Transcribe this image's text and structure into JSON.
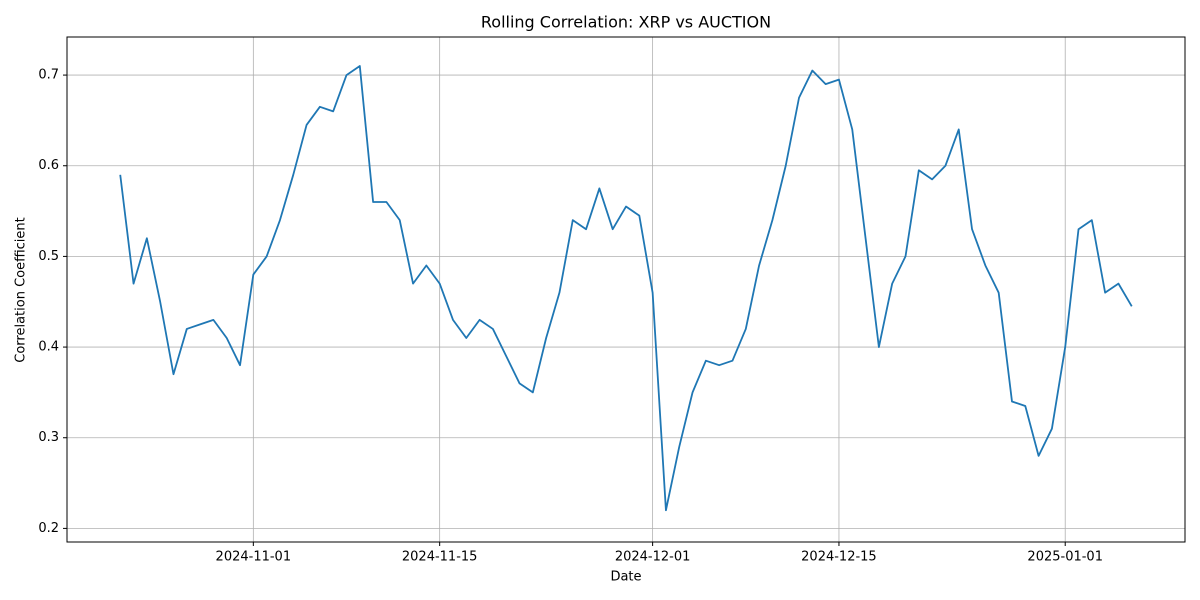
{
  "chart_data": {
    "type": "line",
    "title": "Rolling Correlation: XRP vs AUCTION",
    "x_label": "Date",
    "y_label": "Correlation Coefficient",
    "x": [
      "2024-10-22",
      "2024-10-23",
      "2024-10-24",
      "2024-10-25",
      "2024-10-26",
      "2024-10-27",
      "2024-10-28",
      "2024-10-29",
      "2024-10-30",
      "2024-10-31",
      "2024-11-01",
      "2024-11-02",
      "2024-11-03",
      "2024-11-04",
      "2024-11-05",
      "2024-11-06",
      "2024-11-07",
      "2024-11-08",
      "2024-11-09",
      "2024-11-10",
      "2024-11-11",
      "2024-11-12",
      "2024-11-13",
      "2024-11-14",
      "2024-11-15",
      "2024-11-16",
      "2024-11-17",
      "2024-11-18",
      "2024-11-19",
      "2024-11-20",
      "2024-11-21",
      "2024-11-22",
      "2024-11-23",
      "2024-11-24",
      "2024-11-25",
      "2024-11-26",
      "2024-11-27",
      "2024-11-28",
      "2024-11-29",
      "2024-11-30",
      "2024-12-01",
      "2024-12-02",
      "2024-12-03",
      "2024-12-04",
      "2024-12-05",
      "2024-12-06",
      "2024-12-07",
      "2024-12-08",
      "2024-12-09",
      "2024-12-10",
      "2024-12-11",
      "2024-12-12",
      "2024-12-13",
      "2024-12-14",
      "2024-12-15",
      "2024-12-16",
      "2024-12-17",
      "2024-12-18",
      "2024-12-19",
      "2024-12-20",
      "2024-12-21",
      "2024-12-22",
      "2024-12-23",
      "2024-12-24",
      "2024-12-25",
      "2024-12-26",
      "2024-12-27",
      "2024-12-28",
      "2024-12-29",
      "2024-12-30",
      "2024-12-31",
      "2025-01-01",
      "2025-01-02",
      "2025-01-03",
      "2025-01-04",
      "2025-01-05",
      "2025-01-06"
    ],
    "series": [
      {
        "name": "Rolling Correlation",
        "color": "#1f77b4",
        "values": [
          0.59,
          0.47,
          0.52,
          0.45,
          0.37,
          0.42,
          0.425,
          0.43,
          0.41,
          0.38,
          0.48,
          0.5,
          0.54,
          0.59,
          0.645,
          0.665,
          0.66,
          0.7,
          0.71,
          0.56,
          0.56,
          0.54,
          0.47,
          0.49,
          0.47,
          0.43,
          0.41,
          0.43,
          0.42,
          0.39,
          0.36,
          0.35,
          0.41,
          0.46,
          0.54,
          0.53,
          0.575,
          0.53,
          0.555,
          0.545,
          0.46,
          0.22,
          0.29,
          0.35,
          0.385,
          0.38,
          0.385,
          0.42,
          0.49,
          0.54,
          0.6,
          0.675,
          0.705,
          0.69,
          0.695,
          0.64,
          0.52,
          0.4,
          0.47,
          0.5,
          0.595,
          0.585,
          0.6,
          0.64,
          0.53,
          0.49,
          0.46,
          0.34,
          0.335,
          0.28,
          0.31,
          0.4,
          0.53,
          0.54,
          0.46,
          0.47,
          0.445
        ]
      }
    ],
    "xlim": [
      "2024-10-18",
      "2025-01-10"
    ],
    "xticks": [
      "2024-11-01",
      "2024-11-15",
      "2024-12-01",
      "2024-12-15",
      "2025-01-01"
    ],
    "ylim": [
      0.185,
      0.742
    ],
    "yticks": [
      0.2,
      0.3,
      0.4,
      0.5,
      0.6,
      0.7
    ],
    "grid": true
  }
}
